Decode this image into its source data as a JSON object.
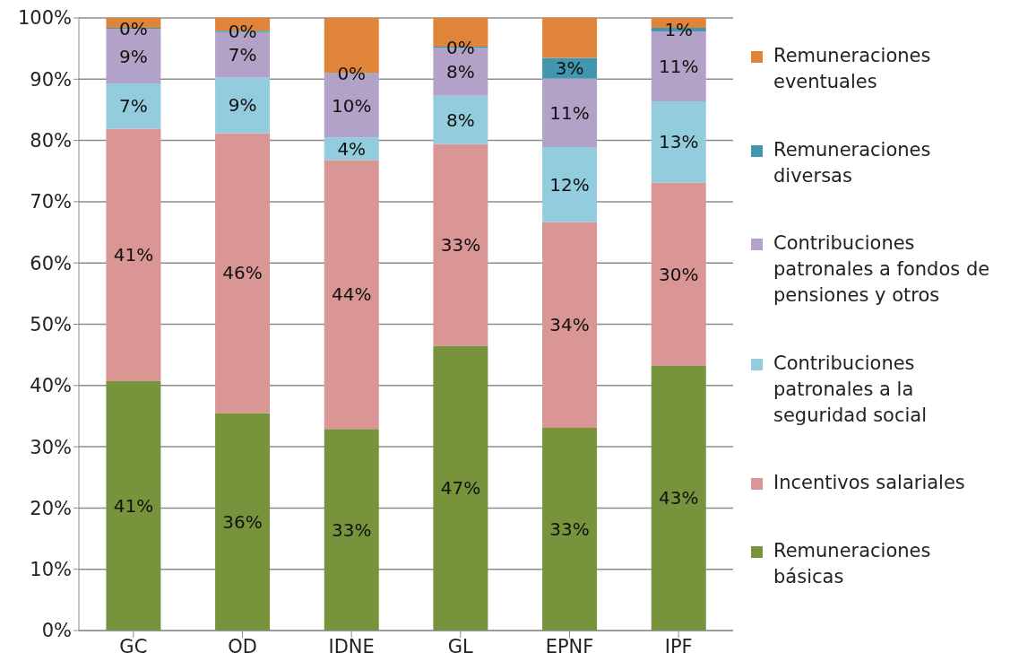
{
  "chart_data": {
    "type": "bar",
    "stacked": true,
    "categories": [
      "GC",
      "OD",
      "IDNE",
      "GL",
      "EPNF",
      "IPF"
    ],
    "series": [
      {
        "name": "Remuneraciones básicas",
        "color": "#77933c",
        "values": [
          40.7,
          35.5,
          32.9,
          46.5,
          33.1,
          43.2
        ],
        "value_labels": [
          "41%",
          "36%",
          "33%",
          "47%",
          "33%",
          "43%"
        ]
      },
      {
        "name": "Incentivos salariales",
        "color": "#d99694",
        "values": [
          41.2,
          45.7,
          43.9,
          32.9,
          33.6,
          29.9
        ],
        "value_labels": [
          "41%",
          "46%",
          "44%",
          "33%",
          "34%",
          "30%"
        ]
      },
      {
        "name": "Contribuciones patronales a la seguridad social",
        "color": "#93cddd",
        "values": [
          7.4,
          9.1,
          3.7,
          7.9,
          12.2,
          13.3
        ],
        "value_labels": [
          "7%",
          "9%",
          "4%",
          "8%",
          "12%",
          "13%"
        ]
      },
      {
        "name": "Contribuciones patronales a fondos de pensiones  y otros",
        "color": "#b3a2c7",
        "values": [
          8.9,
          7.4,
          10.4,
          7.8,
          11.2,
          11.4
        ],
        "value_labels": [
          "9%",
          "7%",
          "10%",
          "8%",
          "11%",
          "11%"
        ]
      },
      {
        "name": "Remuneraciones diversas",
        "color": "#4196b0",
        "values": [
          0.2,
          0.2,
          0.1,
          0.2,
          3.4,
          0.6
        ],
        "value_labels": [
          "0%",
          "0%",
          "0%",
          "0%",
          "3%",
          "1%"
        ]
      },
      {
        "name": "Remuneraciones eventuales",
        "color": "#e0843a",
        "values": [
          1.6,
          2.1,
          9.0,
          4.7,
          6.5,
          1.6
        ],
        "value_labels": [
          null,
          null,
          null,
          null,
          null,
          null
        ]
      }
    ],
    "ylim": [
      0,
      100
    ],
    "yticks": [
      {
        "value": 0,
        "label": "0%"
      },
      {
        "value": 10,
        "label": "10%"
      },
      {
        "value": 20,
        "label": "20%"
      },
      {
        "value": 30,
        "label": "30%"
      },
      {
        "value": 40,
        "label": "40%"
      },
      {
        "value": 50,
        "label": "50%"
      },
      {
        "value": 60,
        "label": "60%"
      },
      {
        "value": 70,
        "label": "70%"
      },
      {
        "value": 80,
        "label": "80%"
      },
      {
        "value": 90,
        "label": "90%"
      },
      {
        "value": 100,
        "label": "100%"
      }
    ],
    "grid": "y",
    "legend": "right"
  }
}
